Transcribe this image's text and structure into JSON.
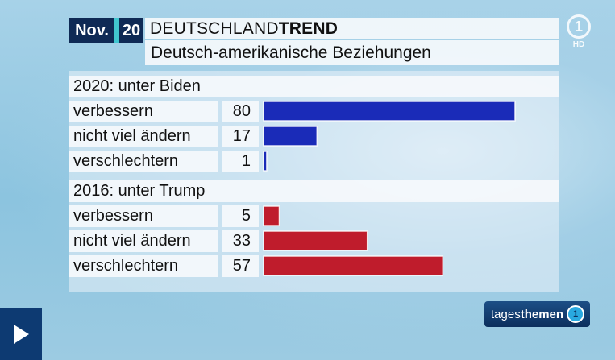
{
  "header": {
    "month": "Nov.",
    "year": "20",
    "title_regular": "DEUTSCHLAND",
    "title_bold": "TREND",
    "subtitle": "Deutsch-amerikanische Beziehungen"
  },
  "colors": {
    "biden_bar": "#1a2bb8",
    "trump_bar": "#bf1c2c",
    "navy": "#0f2a55",
    "accent": "#41c6cf"
  },
  "logos": {
    "channel": "1",
    "hd": "HD",
    "show_regular": "tages",
    "show_bold": "themen"
  },
  "chart_data": {
    "type": "bar",
    "title": "Deutsch-amerikanische Beziehungen",
    "xlim": [
      0,
      100
    ],
    "groups": [
      {
        "name": "2020: unter Biden",
        "categories": [
          "verbessern",
          "nicht viel ändern",
          "verschlechtern"
        ],
        "values": [
          80,
          17,
          1
        ]
      },
      {
        "name": "2016: unter Trump",
        "categories": [
          "verbessern",
          "nicht viel ändern",
          "verschlechtern"
        ],
        "values": [
          5,
          33,
          57
        ]
      }
    ]
  }
}
